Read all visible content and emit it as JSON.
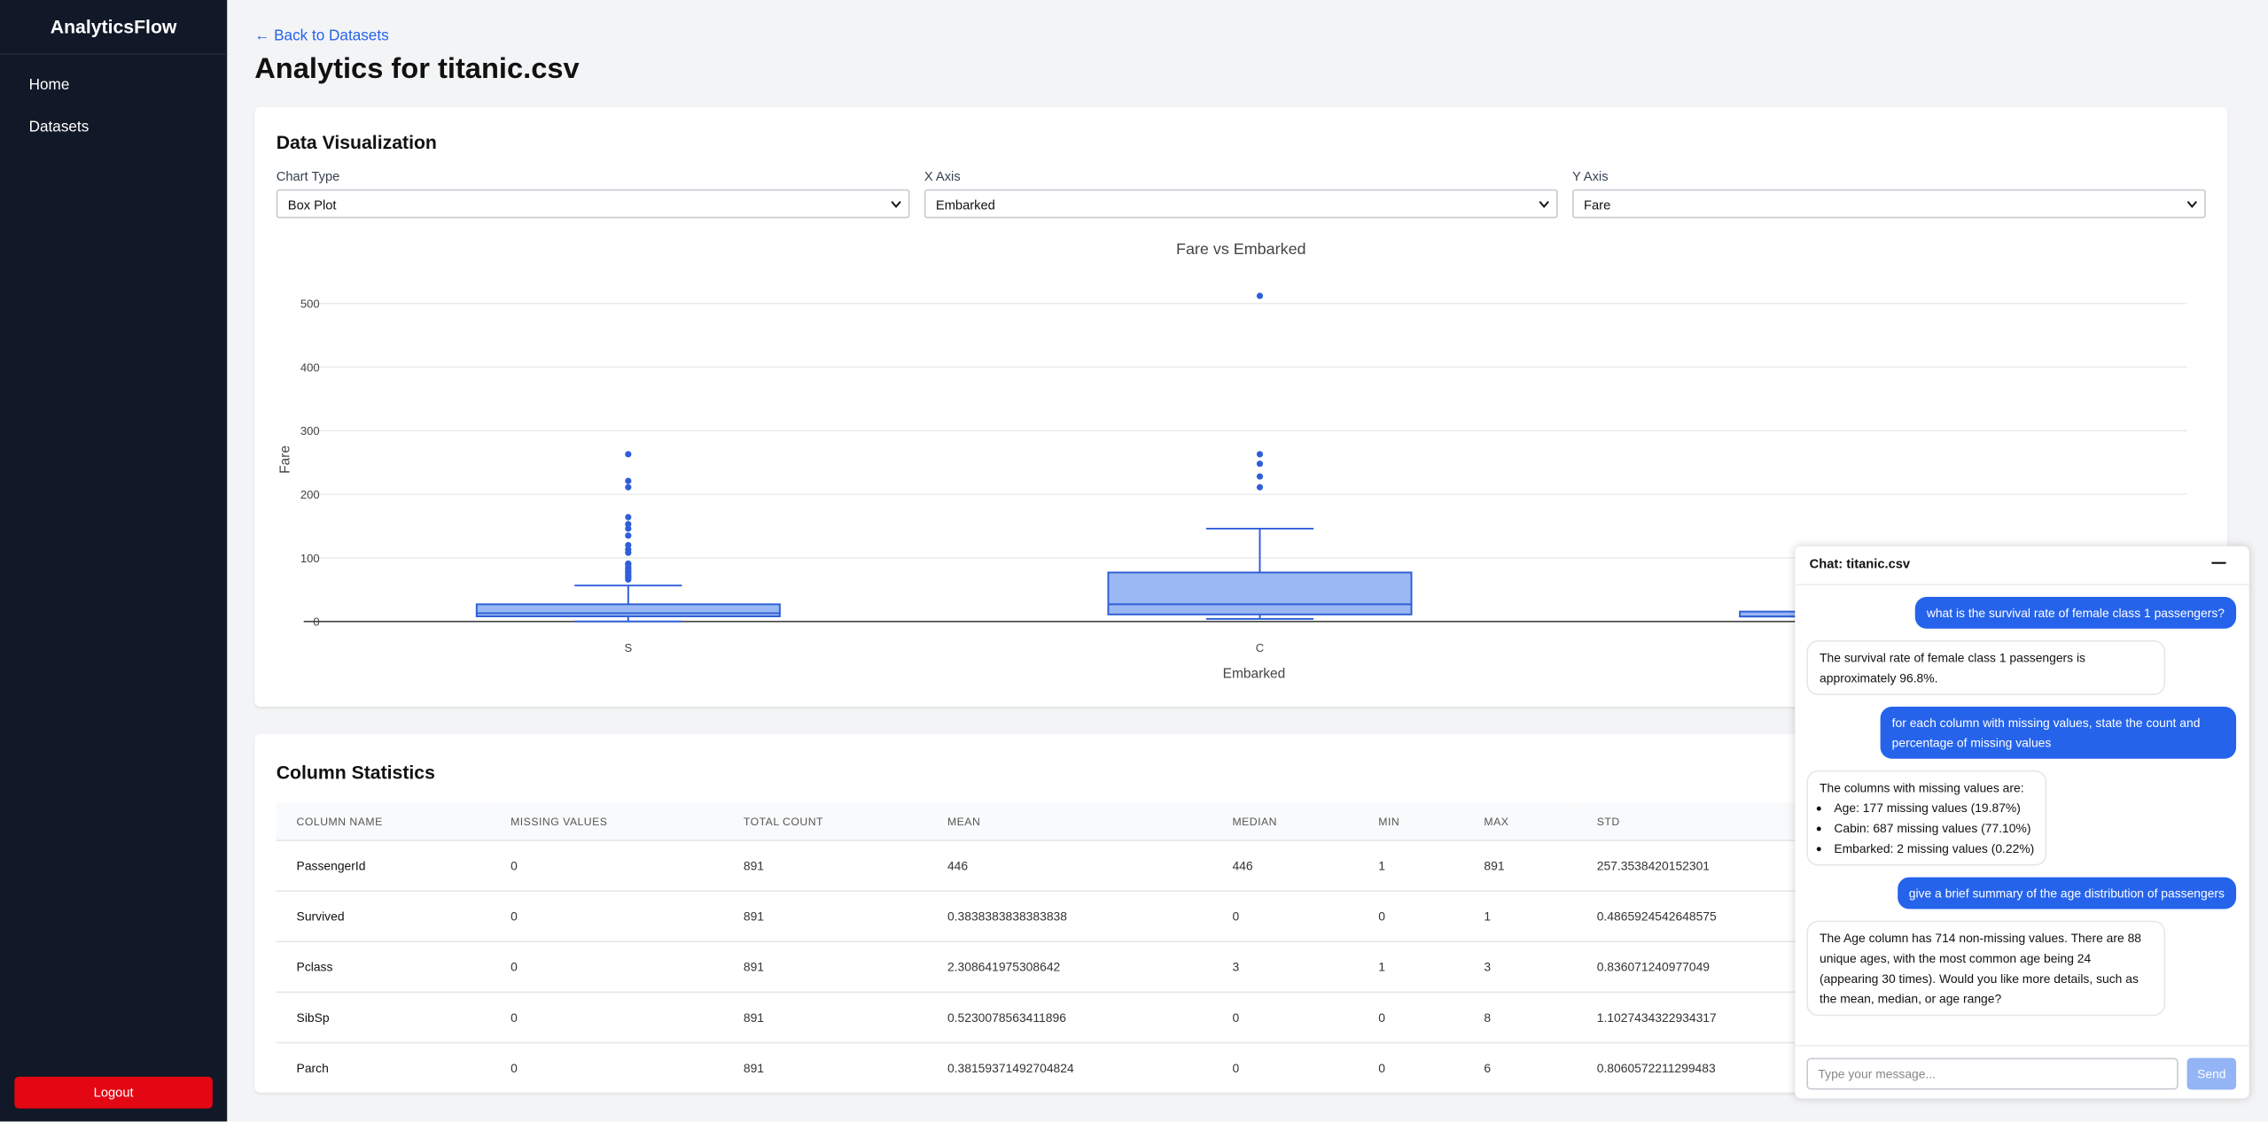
{
  "sidebar": {
    "brand": "AnalyticsFlow",
    "nav": [
      "Home",
      "Datasets"
    ],
    "logout": "Logout"
  },
  "header": {
    "back_link": "← Back to Datasets",
    "title": "Analytics for titanic.csv"
  },
  "visualization": {
    "title": "Data Visualization",
    "controls": [
      {
        "label": "Chart Type",
        "value": "Box Plot"
      },
      {
        "label": "X Axis",
        "value": "Embarked"
      },
      {
        "label": "Y Axis",
        "value": "Fare"
      }
    ]
  },
  "chart_data": {
    "type": "box",
    "title": "Fare vs Embarked",
    "x_label": "Embarked",
    "y_label": "Fare",
    "categories": [
      "S",
      "C",
      null
    ],
    "color": "#2f5fd8",
    "fill": "#9ab8f2",
    "boxes": [
      {
        "low": 0,
        "q1": 8,
        "median": 13,
        "q3": 27,
        "high": 56.5,
        "outliers": [
          263,
          221,
          211,
          164,
          153,
          146,
          135,
          120,
          113,
          108,
          91,
          90,
          86,
          83,
          80,
          78,
          76,
          73,
          71,
          69,
          66
        ]
      },
      {
        "low": 4,
        "q1": 11,
        "median": 27,
        "q3": 77,
        "high": 146,
        "outliers": [
          512,
          263,
          248,
          228,
          211
        ]
      },
      {
        "low": null,
        "q1": 7.75,
        "median": 7.75,
        "q3": 15.5,
        "high": null,
        "outliers": []
      }
    ],
    "ylim": [
      -10,
      520
    ],
    "yticks": [
      0,
      100,
      200,
      300,
      400,
      500
    ],
    "grid": true
  },
  "statistics": {
    "title": "Column Statistics",
    "columns": [
      "COLUMN NAME",
      "MISSING VALUES",
      "TOTAL COUNT",
      "MEAN",
      "MEDIAN",
      "MIN",
      "MAX",
      "STD"
    ],
    "rows": [
      [
        "PassengerId",
        "0",
        "891",
        "446",
        "446",
        "1",
        "891",
        "257.3538420152301"
      ],
      [
        "Survived",
        "0",
        "891",
        "0.3838383838383838",
        "0",
        "0",
        "1",
        "0.4865924542648575"
      ],
      [
        "Pclass",
        "0",
        "891",
        "2.308641975308642",
        "3",
        "1",
        "3",
        "0.836071240977049"
      ],
      [
        "SibSp",
        "0",
        "891",
        "0.5230078563411896",
        "0",
        "0",
        "8",
        "1.1027434322934317"
      ],
      [
        "Parch",
        "0",
        "891",
        "0.38159371492704824",
        "0",
        "0",
        "6",
        "0.8060572211299483"
      ]
    ]
  },
  "chat": {
    "title": "Chat: titanic.csv",
    "messages": [
      {
        "role": "user",
        "text": "what is the survival rate of female class 1 passengers?"
      },
      {
        "role": "bot",
        "text": "The survival rate of female class 1 passengers is approximately 96.8%."
      },
      {
        "role": "user",
        "text": "for each column with missing values, state the count and percentage of missing values"
      },
      {
        "role": "bot",
        "text": "The columns with missing values are:",
        "items": [
          "Age: 177 missing values (19.87%)",
          "Cabin: 687 missing values (77.10%)",
          "Embarked: 2 missing values (0.22%)"
        ]
      },
      {
        "role": "user",
        "text": "give a brief summary of the age distribution of passengers"
      },
      {
        "role": "bot",
        "text": "The Age column has 714 non-missing values. There are 88 unique ages, with the most common age being 24 (appearing 30 times). Would you like more details, such as the mean, median, or age range?"
      }
    ],
    "input_placeholder": "Type your message...",
    "send": "Send"
  }
}
